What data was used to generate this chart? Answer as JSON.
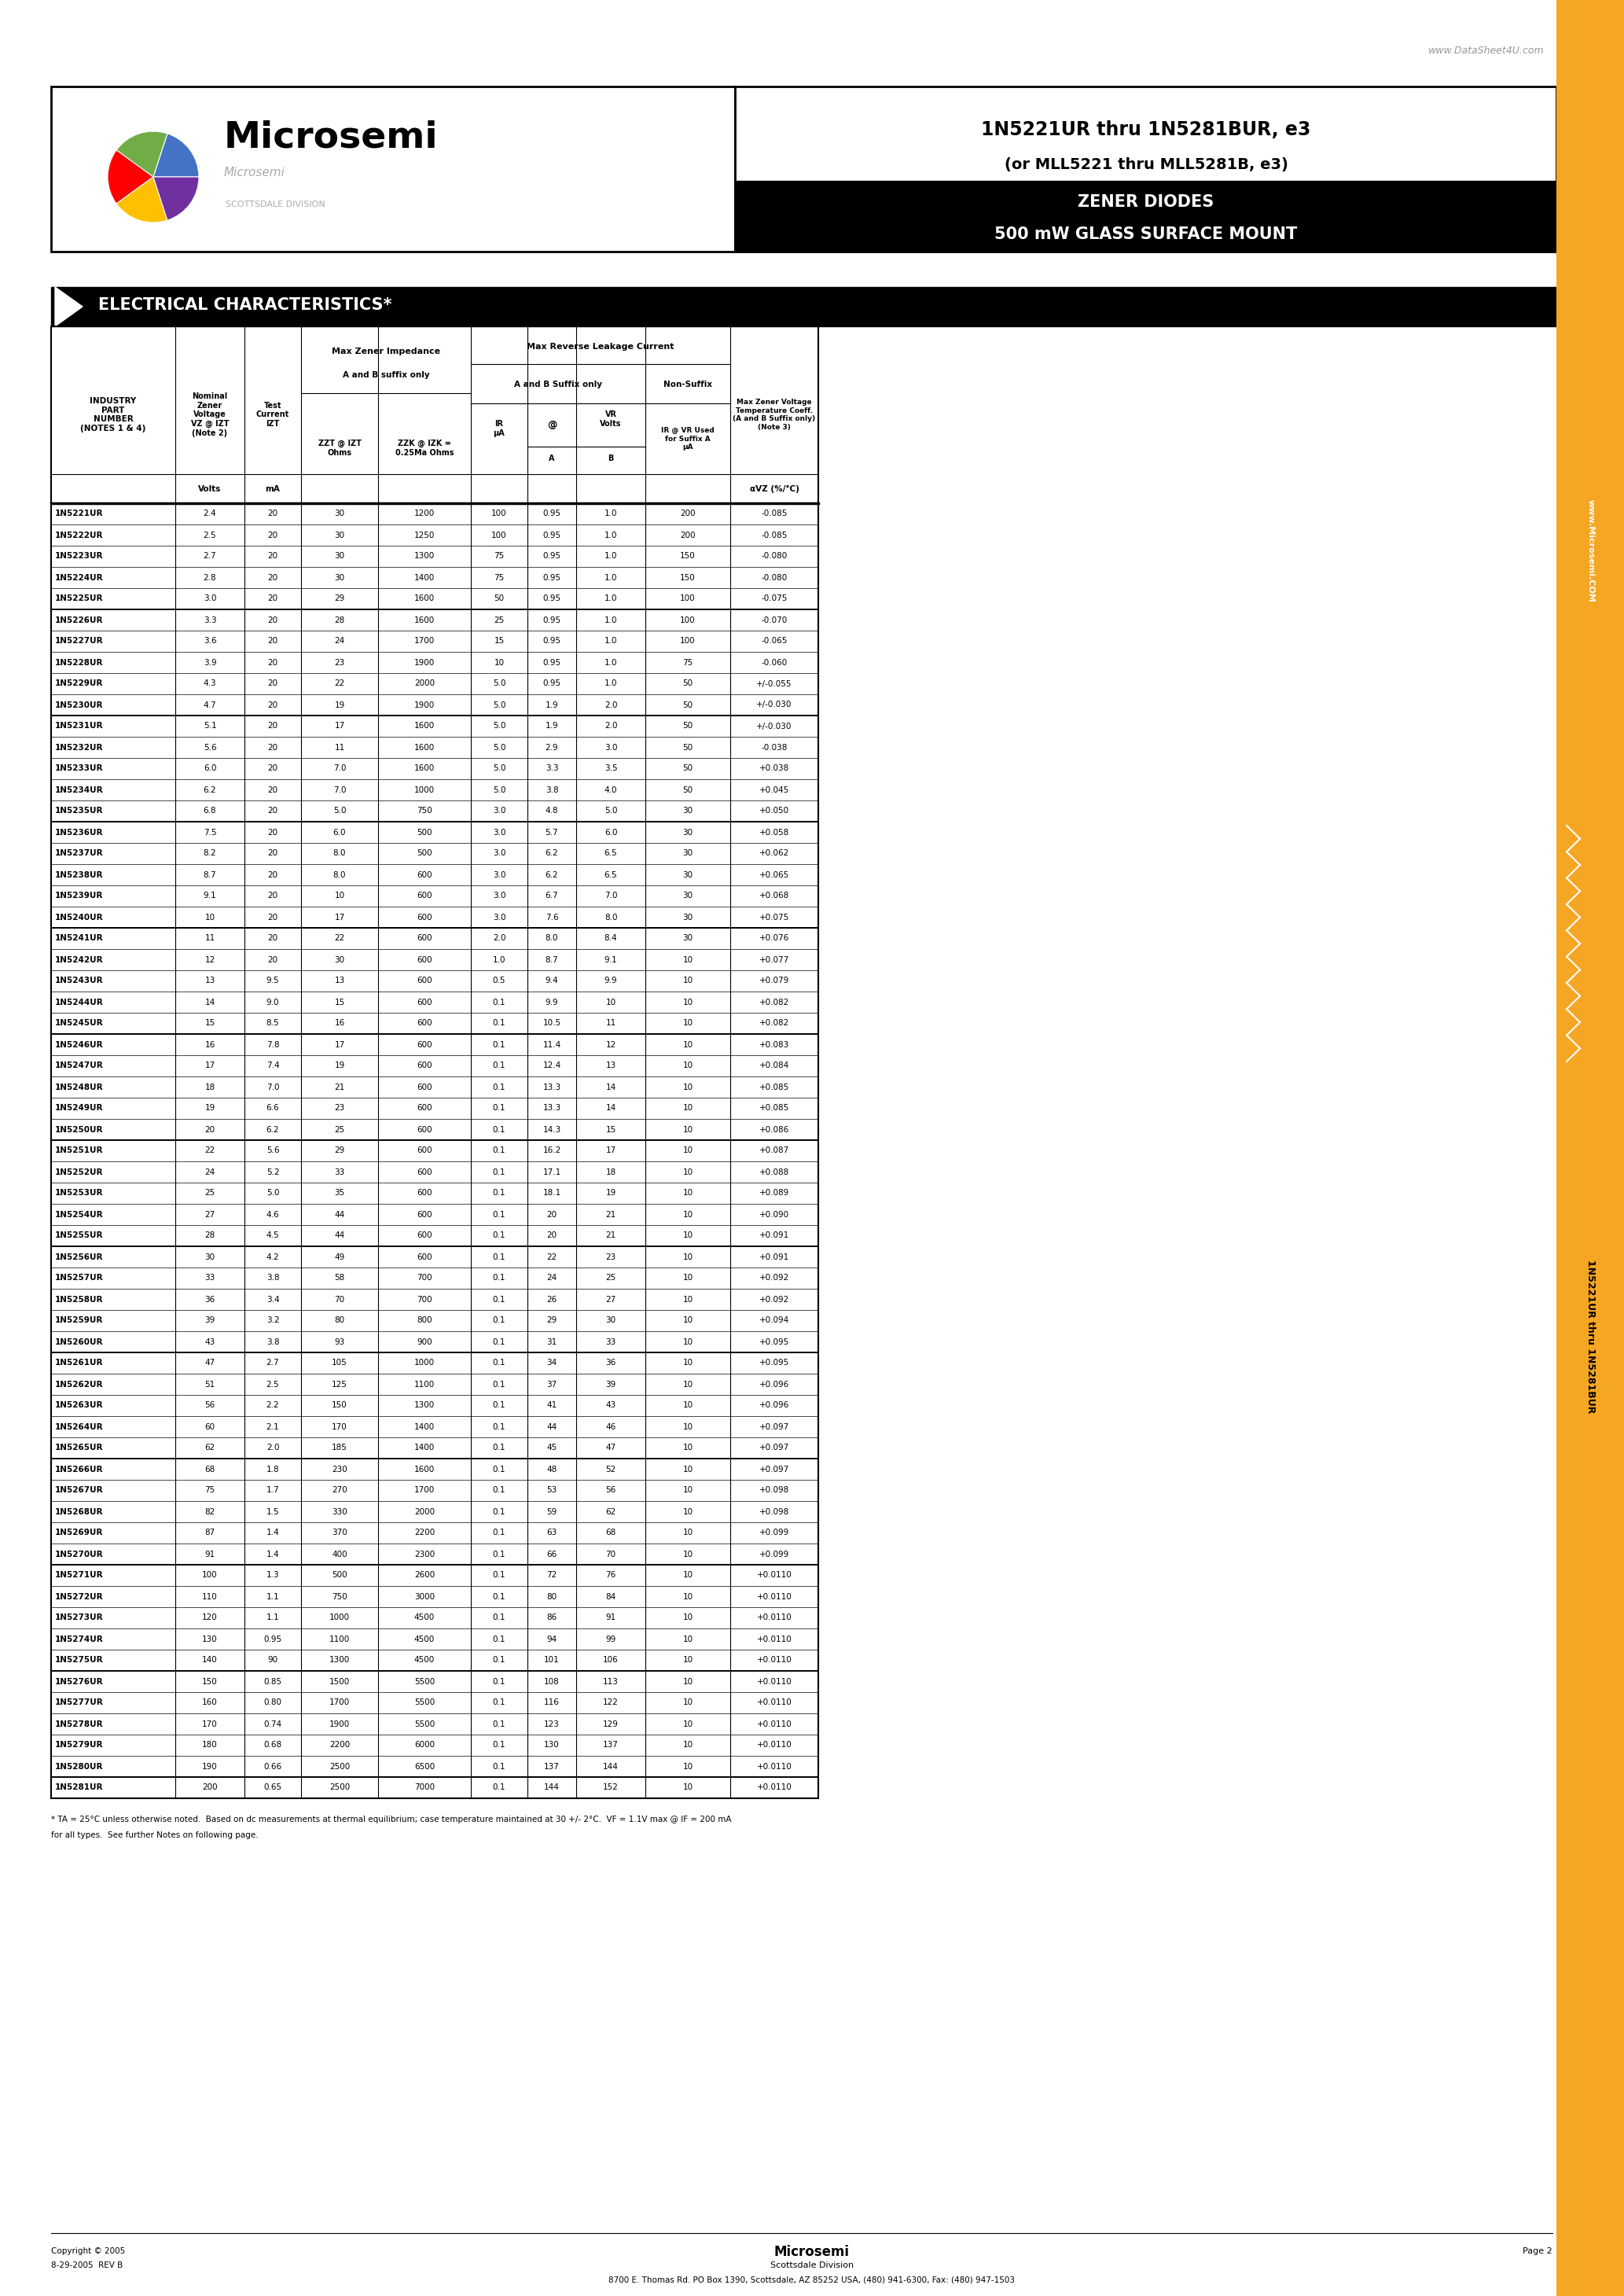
{
  "page_url": "www.DataSheet4U.com",
  "title_line1": "1N5221UR thru 1N5281BUR, e3",
  "title_line2": "(or MLL5221 thru MLL5281B, e3)",
  "subtitle_line1": "500 mW GLASS SURFACE MOUNT",
  "subtitle_line2": "ZENER DIODES",
  "company": "Microsemi",
  "division": "SCOTTSDALE DIVISION",
  "section_title": "ELECTRICAL CHARACTERISTICS*",
  "table_data": [
    [
      "1N5221UR",
      "2.4",
      "20",
      "30",
      "1200",
      "100",
      "0.95",
      "1.0",
      "200",
      "-0.085"
    ],
    [
      "1N5222UR",
      "2.5",
      "20",
      "30",
      "1250",
      "100",
      "0.95",
      "1.0",
      "200",
      "-0.085"
    ],
    [
      "1N5223UR",
      "2.7",
      "20",
      "30",
      "1300",
      "75",
      "0.95",
      "1.0",
      "150",
      "-0.080"
    ],
    [
      "1N5224UR",
      "2.8",
      "20",
      "30",
      "1400",
      "75",
      "0.95",
      "1.0",
      "150",
      "-0.080"
    ],
    [
      "1N5225UR",
      "3.0",
      "20",
      "29",
      "1600",
      "50",
      "0.95",
      "1.0",
      "100",
      "-0.075"
    ],
    [
      "1N5226UR",
      "3.3",
      "20",
      "28",
      "1600",
      "25",
      "0.95",
      "1.0",
      "100",
      "-0.070"
    ],
    [
      "1N5227UR",
      "3.6",
      "20",
      "24",
      "1700",
      "15",
      "0.95",
      "1.0",
      "100",
      "-0.065"
    ],
    [
      "1N5228UR",
      "3.9",
      "20",
      "23",
      "1900",
      "10",
      "0.95",
      "1.0",
      "75",
      "-0.060"
    ],
    [
      "1N5229UR",
      "4.3",
      "20",
      "22",
      "2000",
      "5.0",
      "0.95",
      "1.0",
      "50",
      "+/-0.055"
    ],
    [
      "1N5230UR",
      "4.7",
      "20",
      "19",
      "1900",
      "5.0",
      "1.9",
      "2.0",
      "50",
      "+/-0.030"
    ],
    [
      "1N5231UR",
      "5.1",
      "20",
      "17",
      "1600",
      "5.0",
      "1.9",
      "2.0",
      "50",
      "+/-0.030"
    ],
    [
      "1N5232UR",
      "5.6",
      "20",
      "11",
      "1600",
      "5.0",
      "2.9",
      "3.0",
      "50",
      "-0.038"
    ],
    [
      "1N5233UR",
      "6.0",
      "20",
      "7.0",
      "1600",
      "5.0",
      "3.3",
      "3.5",
      "50",
      "+0.038"
    ],
    [
      "1N5234UR",
      "6.2",
      "20",
      "7.0",
      "1000",
      "5.0",
      "3.8",
      "4.0",
      "50",
      "+0.045"
    ],
    [
      "1N5235UR",
      "6.8",
      "20",
      "5.0",
      "750",
      "3.0",
      "4.8",
      "5.0",
      "30",
      "+0.050"
    ],
    [
      "1N5236UR",
      "7.5",
      "20",
      "6.0",
      "500",
      "3.0",
      "5.7",
      "6.0",
      "30",
      "+0.058"
    ],
    [
      "1N5237UR",
      "8.2",
      "20",
      "8.0",
      "500",
      "3.0",
      "6.2",
      "6.5",
      "30",
      "+0.062"
    ],
    [
      "1N5238UR",
      "8.7",
      "20",
      "8.0",
      "600",
      "3.0",
      "6.2",
      "6.5",
      "30",
      "+0.065"
    ],
    [
      "1N5239UR",
      "9.1",
      "20",
      "10",
      "600",
      "3.0",
      "6.7",
      "7.0",
      "30",
      "+0.068"
    ],
    [
      "1N5240UR",
      "10",
      "20",
      "17",
      "600",
      "3.0",
      "7.6",
      "8.0",
      "30",
      "+0.075"
    ],
    [
      "1N5241UR",
      "11",
      "20",
      "22",
      "600",
      "2.0",
      "8.0",
      "8.4",
      "30",
      "+0.076"
    ],
    [
      "1N5242UR",
      "12",
      "20",
      "30",
      "600",
      "1.0",
      "8.7",
      "9.1",
      "10",
      "+0.077"
    ],
    [
      "1N5243UR",
      "13",
      "9.5",
      "13",
      "600",
      "0.5",
      "9.4",
      "9.9",
      "10",
      "+0.079"
    ],
    [
      "1N5244UR",
      "14",
      "9.0",
      "15",
      "600",
      "0.1",
      "9.9",
      "10",
      "10",
      "+0.082"
    ],
    [
      "1N5245UR",
      "15",
      "8.5",
      "16",
      "600",
      "0.1",
      "10.5",
      "11",
      "10",
      "+0.082"
    ],
    [
      "1N5246UR",
      "16",
      "7.8",
      "17",
      "600",
      "0.1",
      "11.4",
      "12",
      "10",
      "+0.083"
    ],
    [
      "1N5247UR",
      "17",
      "7.4",
      "19",
      "600",
      "0.1",
      "12.4",
      "13",
      "10",
      "+0.084"
    ],
    [
      "1N5248UR",
      "18",
      "7.0",
      "21",
      "600",
      "0.1",
      "13.3",
      "14",
      "10",
      "+0.085"
    ],
    [
      "1N5249UR",
      "19",
      "6.6",
      "23",
      "600",
      "0.1",
      "13.3",
      "14",
      "10",
      "+0.085"
    ],
    [
      "1N5250UR",
      "20",
      "6.2",
      "25",
      "600",
      "0.1",
      "14.3",
      "15",
      "10",
      "+0.086"
    ],
    [
      "1N5251UR",
      "22",
      "5.6",
      "29",
      "600",
      "0.1",
      "16.2",
      "17",
      "10",
      "+0.087"
    ],
    [
      "1N5252UR",
      "24",
      "5.2",
      "33",
      "600",
      "0.1",
      "17.1",
      "18",
      "10",
      "+0.088"
    ],
    [
      "1N5253UR",
      "25",
      "5.0",
      "35",
      "600",
      "0.1",
      "18.1",
      "19",
      "10",
      "+0.089"
    ],
    [
      "1N5254UR",
      "27",
      "4.6",
      "44",
      "600",
      "0.1",
      "20",
      "21",
      "10",
      "+0.090"
    ],
    [
      "1N5255UR",
      "28",
      "4.5",
      "44",
      "600",
      "0.1",
      "20",
      "21",
      "10",
      "+0.091"
    ],
    [
      "1N5256UR",
      "30",
      "4.2",
      "49",
      "600",
      "0.1",
      "22",
      "23",
      "10",
      "+0.091"
    ],
    [
      "1N5257UR",
      "33",
      "3.8",
      "58",
      "700",
      "0.1",
      "24",
      "25",
      "10",
      "+0.092"
    ],
    [
      "1N5258UR",
      "36",
      "3.4",
      "70",
      "700",
      "0.1",
      "26",
      "27",
      "10",
      "+0.092"
    ],
    [
      "1N5259UR",
      "39",
      "3.2",
      "80",
      "800",
      "0.1",
      "29",
      "30",
      "10",
      "+0.094"
    ],
    [
      "1N5260UR",
      "43",
      "3.8",
      "93",
      "900",
      "0.1",
      "31",
      "33",
      "10",
      "+0.095"
    ],
    [
      "1N5261UR",
      "47",
      "2.7",
      "105",
      "1000",
      "0.1",
      "34",
      "36",
      "10",
      "+0.095"
    ],
    [
      "1N5262UR",
      "51",
      "2.5",
      "125",
      "1100",
      "0.1",
      "37",
      "39",
      "10",
      "+0.096"
    ],
    [
      "1N5263UR",
      "56",
      "2.2",
      "150",
      "1300",
      "0.1",
      "41",
      "43",
      "10",
      "+0.096"
    ],
    [
      "1N5264UR",
      "60",
      "2.1",
      "170",
      "1400",
      "0.1",
      "44",
      "46",
      "10",
      "+0.097"
    ],
    [
      "1N5265UR",
      "62",
      "2.0",
      "185",
      "1400",
      "0.1",
      "45",
      "47",
      "10",
      "+0.097"
    ],
    [
      "1N5266UR",
      "68",
      "1.8",
      "230",
      "1600",
      "0.1",
      "48",
      "52",
      "10",
      "+0.097"
    ],
    [
      "1N5267UR",
      "75",
      "1.7",
      "270",
      "1700",
      "0.1",
      "53",
      "56",
      "10",
      "+0.098"
    ],
    [
      "1N5268UR",
      "82",
      "1.5",
      "330",
      "2000",
      "0.1",
      "59",
      "62",
      "10",
      "+0.098"
    ],
    [
      "1N5269UR",
      "87",
      "1.4",
      "370",
      "2200",
      "0.1",
      "63",
      "68",
      "10",
      "+0.099"
    ],
    [
      "1N5270UR",
      "91",
      "1.4",
      "400",
      "2300",
      "0.1",
      "66",
      "70",
      "10",
      "+0.099"
    ],
    [
      "1N5271UR",
      "100",
      "1.3",
      "500",
      "2600",
      "0.1",
      "72",
      "76",
      "10",
      "+0.0110"
    ],
    [
      "1N5272UR",
      "110",
      "1.1",
      "750",
      "3000",
      "0.1",
      "80",
      "84",
      "10",
      "+0.0110"
    ],
    [
      "1N5273UR",
      "120",
      "1.1",
      "1000",
      "4500",
      "0.1",
      "86",
      "91",
      "10",
      "+0.0110"
    ],
    [
      "1N5274UR",
      "130",
      "0.95",
      "1100",
      "4500",
      "0.1",
      "94",
      "99",
      "10",
      "+0.0110"
    ],
    [
      "1N5275UR",
      "140",
      "90",
      "1300",
      "4500",
      "0.1",
      "101",
      "106",
      "10",
      "+0.0110"
    ],
    [
      "1N5276UR",
      "150",
      "0.85",
      "1500",
      "5500",
      "0.1",
      "108",
      "113",
      "10",
      "+0.0110"
    ],
    [
      "1N5277UR",
      "160",
      "0.80",
      "1700",
      "5500",
      "0.1",
      "116",
      "122",
      "10",
      "+0.0110"
    ],
    [
      "1N5278UR",
      "170",
      "0.74",
      "1900",
      "5500",
      "0.1",
      "123",
      "129",
      "10",
      "+0.0110"
    ],
    [
      "1N5279UR",
      "180",
      "0.68",
      "2200",
      "6000",
      "0.1",
      "130",
      "137",
      "10",
      "+0.0110"
    ],
    [
      "1N5280UR",
      "190",
      "0.66",
      "2500",
      "6500",
      "0.1",
      "137",
      "144",
      "10",
      "+0.0110"
    ],
    [
      "1N5281UR",
      "200",
      "0.65",
      "2500",
      "7000",
      "0.1",
      "144",
      "152",
      "10",
      "+0.0110"
    ]
  ],
  "footnote1": "* TA = 25°C unless otherwise noted.  Based on dc measurements at thermal equilibrium; case temperature maintained at 30 +/- 2°C.  VF = 1.1V max @ IF = 200 mA",
  "footnote2": "for all types.  See further Notes on following page.",
  "copyright": "Copyright © 2005",
  "rev": "8-29-2005  REV B",
  "company_footer": "Microsemi",
  "address1": "Scottsdale Division",
  "address2": "8700 E. Thomas Rd. PO Box 1390, Scottsdale, AZ 85252 USA, (480) 941-6300, Fax: (480) 947-1503",
  "page": "Page 2",
  "side_text1": "1N5221UR thru 1N5281BUR",
  "side_text2": "www.Microsemi.COM",
  "colors": {
    "orange_bar": "#F5A623",
    "black": "#000000",
    "white": "#ffffff",
    "gray_url": "#999999"
  },
  "globe_colors": [
    "#4472C4",
    "#70AD47",
    "#FF0000",
    "#FFC000",
    "#7030A0"
  ]
}
